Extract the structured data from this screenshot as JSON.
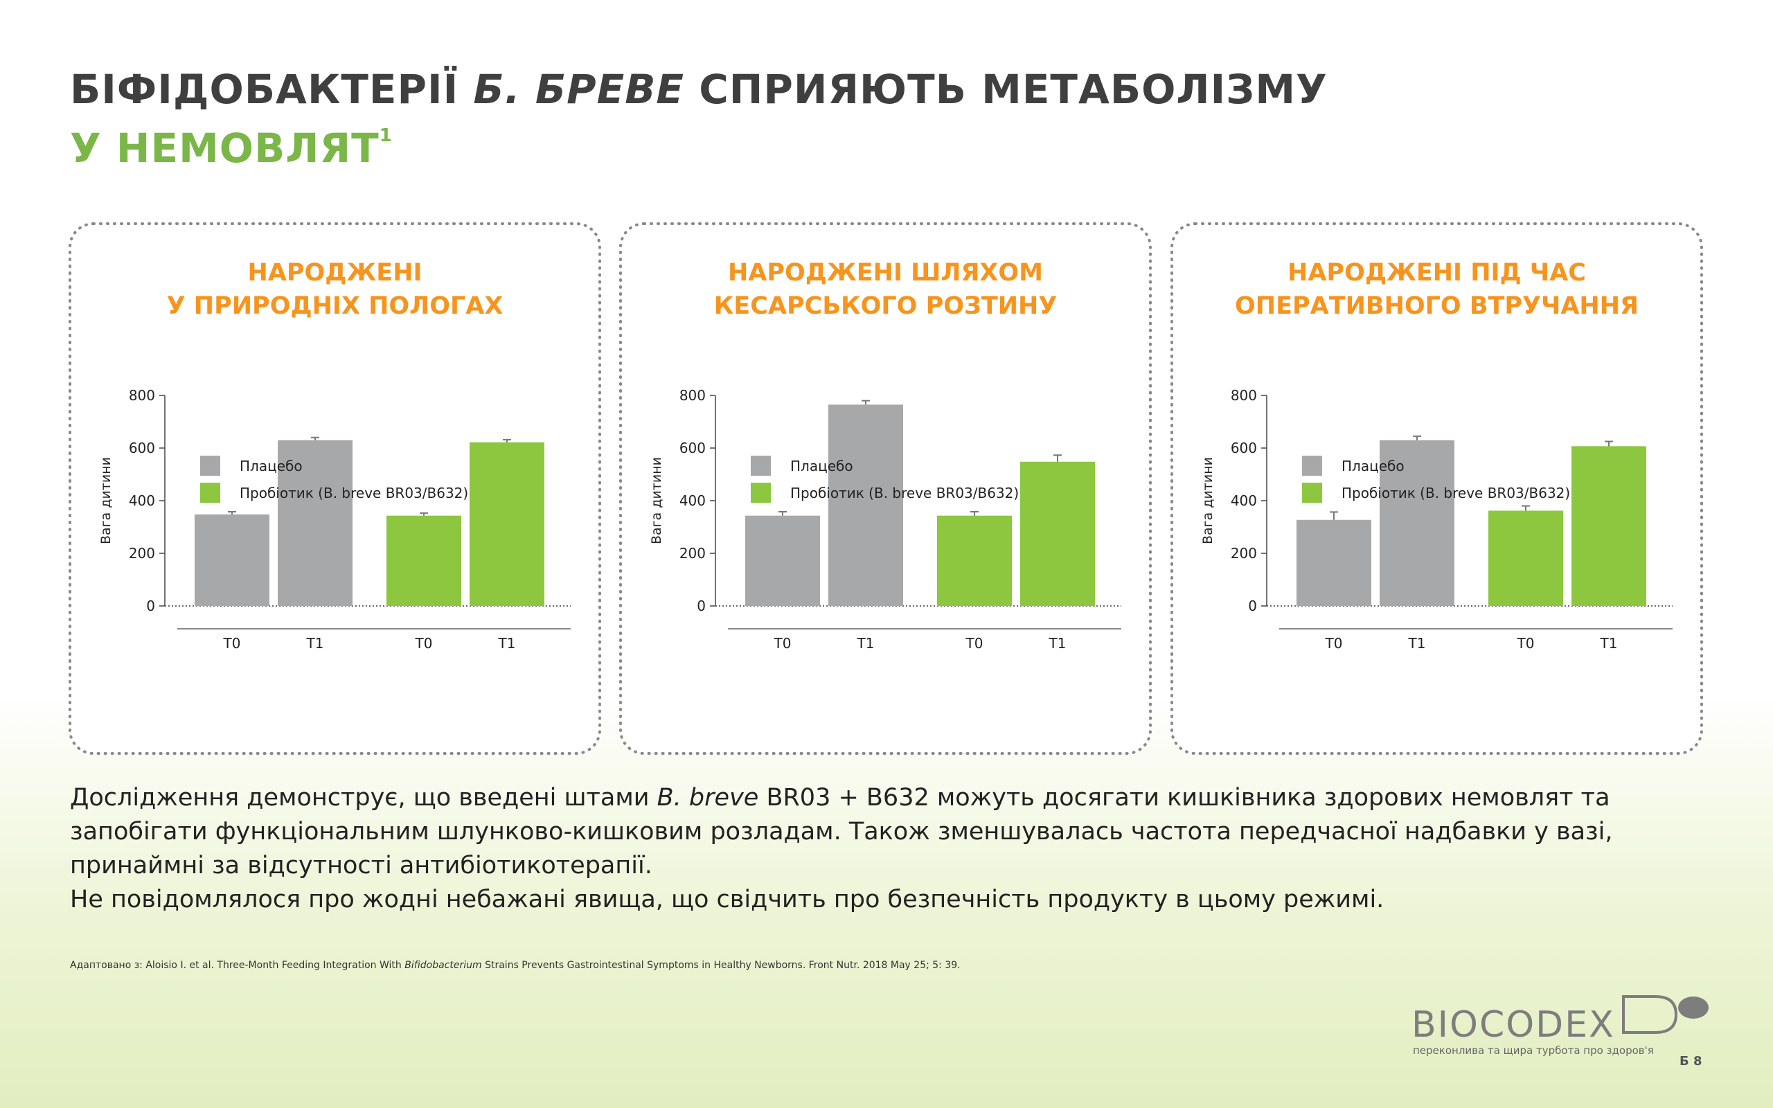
{
  "header": {
    "title_line1": [
      "БІФІДОБАКТЕРІЇ",
      "Б. БРЕВЕ",
      "СПРИЯЮТЬ МЕТАБОЛІЗМУ"
    ],
    "title_line2": "У НЕМОВЛЯТ",
    "footnote_mark": "1"
  },
  "chart_data": [
    {
      "type": "bar",
      "title": [
        "НАРОДЖЕНІ",
        "У ПРИРОДНІХ ПОЛОГАХ"
      ],
      "ylabel": "Вага дитини",
      "categories": [
        "T0",
        "T1"
      ],
      "ylim": [
        0,
        800
      ],
      "yticks": [
        0,
        200,
        400,
        600,
        800
      ],
      "series": [
        {
          "name": "Плацебо",
          "color": "#a7a8aa",
          "values": [
            348,
            630
          ],
          "errors": [
            10,
            10
          ]
        },
        {
          "name": "Пробіотик (B. breve BR03/B632)",
          "color": "#8dc63f",
          "values": [
            343,
            622
          ],
          "errors": [
            10,
            10
          ]
        }
      ]
    },
    {
      "type": "bar",
      "title": [
        "НАРОДЖЕНІ ШЛЯХОМ",
        "КЕСАРСЬКОГО РОЗТИНУ"
      ],
      "ylabel": "Вага дитини",
      "categories": [
        "T0",
        "T1"
      ],
      "ylim": [
        0,
        800
      ],
      "yticks": [
        0,
        200,
        400,
        600,
        800
      ],
      "series": [
        {
          "name": "Плацебо",
          "color": "#a7a8aa",
          "values": [
            343,
            765
          ],
          "errors": [
            15,
            15
          ]
        },
        {
          "name": "Пробіотик (B. breve BR03/B632)",
          "color": "#8dc63f",
          "values": [
            343,
            548
          ],
          "errors": [
            15,
            25
          ]
        }
      ]
    },
    {
      "type": "bar",
      "title": [
        "НАРОДЖЕНІ ПІД ЧАС",
        "ОПЕРАТИВНОГО ВТРУЧАННЯ"
      ],
      "ylabel": "Вага дитини",
      "categories": [
        "T0",
        "T1"
      ],
      "ylim": [
        0,
        800
      ],
      "yticks": [
        0,
        200,
        400,
        600,
        800
      ],
      "series": [
        {
          "name": "Плацебо",
          "color": "#a7a8aa",
          "values": [
            327,
            630
          ],
          "errors": [
            30,
            15
          ]
        },
        {
          "name": "Пробіотик (B. breve BR03/B632)",
          "color": "#8dc63f",
          "values": [
            362,
            607
          ],
          "errors": [
            18,
            18
          ]
        }
      ]
    }
  ],
  "body": {
    "paragraph1": [
      "Дослідження демонструє, що введені штами",
      "B. breve",
      "BR03 + B632 можуть досягати кишківника здорових немовлят та запобігати функціональним шлунково-кишковим розладам. Також зменшувалась частота передчасної надбавки у вазі, принаймні за відсутності антибіотикотерапії."
    ],
    "paragraph2": "Не повідомлялося про жодні небажані явища, що свідчить про безпечність продукту в цьому режимі.",
    "reference": [
      "Адаптовано з: Aloisio I. et al. Three-Month Feeding Integration With",
      "Bifidobacterium",
      "Strains Prevents Gastrointestinal Symptoms in Healthy Newborns. Front Nutr. 2018 May 25; 5: 39."
    ]
  },
  "footer": {
    "brand": "BIOCODEX",
    "tagline": "переконлива та щира турбота про здоров'я",
    "page": "Б 8"
  }
}
